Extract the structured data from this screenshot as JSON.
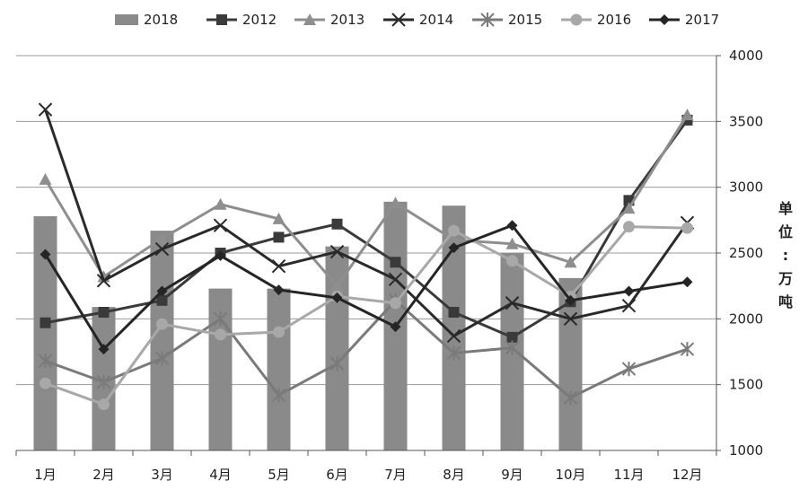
{
  "chart_data": {
    "type": "bar",
    "categories": [
      "1月",
      "2月",
      "3月",
      "4月",
      "5月",
      "6月",
      "7月",
      "8月",
      "9月",
      "10月",
      "11月",
      "12月"
    ],
    "ylim": [
      1000,
      4000
    ],
    "yticks": [
      1000,
      1500,
      2000,
      2500,
      3000,
      3500,
      4000
    ],
    "y_axis_side": "right",
    "ylabel": "单位：万吨",
    "legend_position": "top",
    "grid": true,
    "bar_series": {
      "name": "2018",
      "color": "#8a8a8a",
      "values": [
        2780,
        2090,
        2670,
        2230,
        2230,
        2550,
        2890,
        2860,
        2500,
        2310,
        null,
        null
      ]
    },
    "line_series": [
      {
        "name": "2012",
        "marker": "square",
        "color": "#3a3a3a",
        "values": [
          1970,
          2050,
          2140,
          2500,
          2620,
          2720,
          2430,
          2050,
          1860,
          2130,
          2900,
          3510
        ]
      },
      {
        "name": "2013",
        "marker": "triangle",
        "color": "#8e8e8e",
        "values": [
          3060,
          2320,
          2610,
          2870,
          2760,
          2250,
          2880,
          2600,
          2570,
          2430,
          2840,
          3550
        ]
      },
      {
        "name": "2014",
        "marker": "x",
        "color": "#2a2a2a",
        "values": [
          3590,
          2290,
          2530,
          2710,
          2400,
          2510,
          2300,
          1870,
          2120,
          2000,
          2100,
          2730
        ]
      },
      {
        "name": "2015",
        "marker": "asterisk",
        "color": "#7a7a7a",
        "values": [
          1680,
          1520,
          1700,
          2000,
          1420,
          1660,
          2140,
          1740,
          1780,
          1400,
          1620,
          1770
        ]
      },
      {
        "name": "2016",
        "marker": "circle",
        "color": "#a8a8a8",
        "values": [
          1510,
          1350,
          1960,
          1880,
          1900,
          2170,
          2120,
          2670,
          2440,
          2170,
          2700,
          2690
        ]
      },
      {
        "name": "2017",
        "marker": "diamond",
        "color": "#252525",
        "values": [
          2490,
          1770,
          2210,
          2480,
          2220,
          2160,
          1940,
          2540,
          2710,
          2140,
          2210,
          2280
        ]
      }
    ]
  }
}
